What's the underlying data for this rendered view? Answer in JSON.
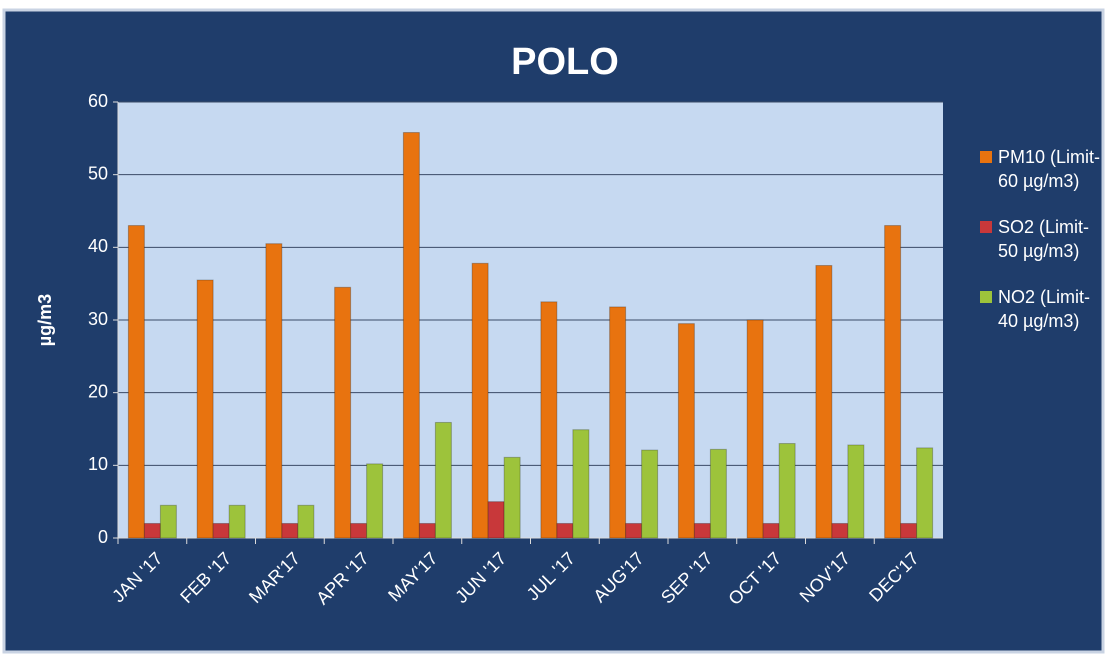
{
  "chart_data": {
    "type": "bar",
    "title": "POLO",
    "y_label": "µg/m3",
    "categories": [
      "JAN '17",
      "FEB '17",
      "MAR'17",
      "APR '17",
      "MAY'17",
      "JUN '17",
      "JUL '17",
      "AUG'17",
      "SEP '17",
      "OCT '17",
      "NOV'17",
      "DEC'17"
    ],
    "series": [
      {
        "name": "PM10 (Limit- 60 µg/m3)",
        "color": "#e8730f",
        "values": [
          43,
          35.5,
          40.5,
          34.5,
          55.8,
          37.8,
          32.5,
          31.8,
          29.5,
          30,
          37.5,
          43
        ]
      },
      {
        "name": "SO2 (Limit- 50 µg/m3)",
        "color": "#c8383a",
        "values": [
          2,
          2,
          2,
          2,
          2,
          5,
          2,
          2,
          2,
          2,
          2,
          2
        ]
      },
      {
        "name": "NO2 (Limit- 40 µg/m3)",
        "color": "#9dc33b",
        "values": [
          4.5,
          4.5,
          4.5,
          10.2,
          15.9,
          11.1,
          14.9,
          12.1,
          12.2,
          13,
          12.8,
          12.4
        ]
      }
    ],
    "ylim": [
      0,
      60
    ],
    "yticks": [
      0,
      10,
      20,
      30,
      40,
      50,
      60
    ],
    "grid": true,
    "legend": "right"
  }
}
